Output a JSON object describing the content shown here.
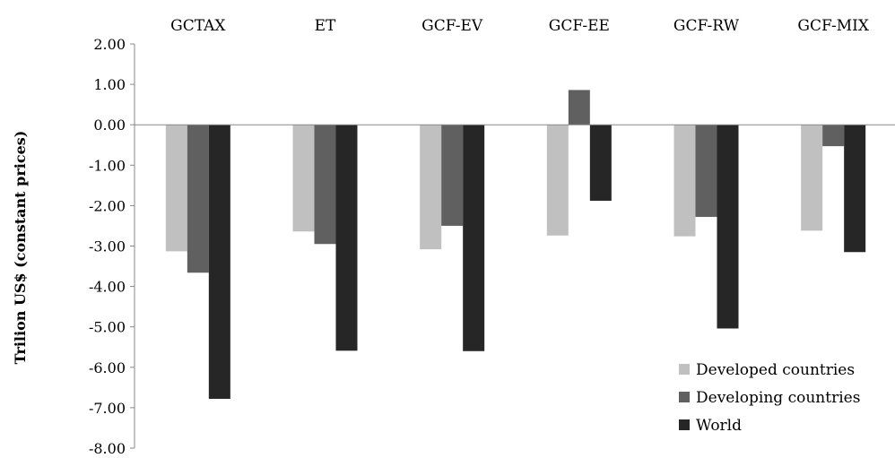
{
  "chart_data": {
    "type": "bar",
    "categories": [
      "GCTAX",
      "ET",
      "GCF-EV",
      "GCF-EE",
      "GCF-RW",
      "GCF-MIX"
    ],
    "series": [
      {
        "name": "Developed countries",
        "color": "#c0c0c0",
        "values": [
          -3.13,
          -2.64,
          -3.08,
          -2.74,
          -2.76,
          -2.62
        ]
      },
      {
        "name": "Developing countries",
        "color": "#606060",
        "values": [
          -3.66,
          -2.95,
          -2.5,
          0.86,
          -2.28,
          -0.53
        ]
      },
      {
        "name": "World",
        "color": "#262626",
        "values": [
          -6.78,
          -5.59,
          -5.6,
          -1.88,
          -5.04,
          -3.15
        ]
      }
    ],
    "ylabel": "Trilion US$ (constant prices)",
    "xlabel": "",
    "ylim": [
      -8,
      2
    ],
    "yticks": [
      "2.00",
      "1.00",
      "0.00",
      "-1.00",
      "-2.00",
      "-3.00",
      "-4.00",
      "-5.00",
      "-6.00",
      "-7.00",
      "-8.00"
    ],
    "grid": false,
    "legend_position": "bottom-right",
    "category_labels_position": "top"
  }
}
